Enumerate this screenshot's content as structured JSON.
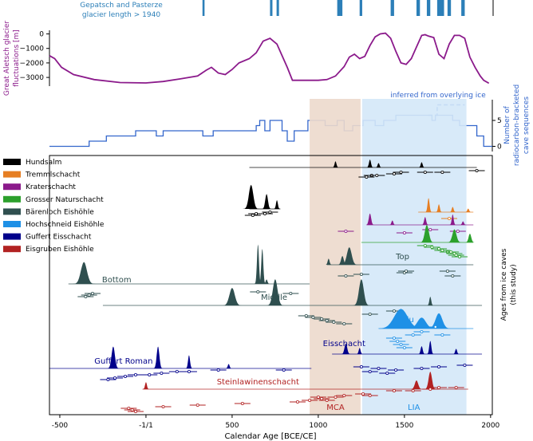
{
  "chart_data": {
    "type": "composite-timeline",
    "x_axis": {
      "label": "Calendar Age [BCE/CE]",
      "range": [
        -560,
        2010
      ],
      "ticks": [
        {
          "value": -500,
          "label": "-500"
        },
        {
          "value": 0,
          "label": "-1/1"
        },
        {
          "value": 500,
          "label": "500"
        },
        {
          "value": 1000,
          "label": "1000"
        },
        {
          "value": 1500,
          "label": "1500"
        },
        {
          "value": 2000,
          "label": "2000"
        }
      ]
    },
    "periods": [
      {
        "name": "MCA",
        "label": "MCA",
        "start": 950,
        "end": 1250,
        "color": "#ecd9cc"
      },
      {
        "name": "LIA",
        "label": "LIA",
        "start": 1250,
        "end": 1860,
        "color": "#d4e8f8"
      }
    ],
    "glacier_length_panel": {
      "title_line1": "Gepatsch and Pasterze",
      "title_line2": "glacier length > 1940",
      "color": "#2c7fb8",
      "intervals": [
        [
          328,
          340
        ],
        [
          720,
          734
        ],
        [
          758,
          772
        ],
        [
          1110,
          1140
        ],
        [
          1240,
          1255
        ],
        [
          1420,
          1440
        ],
        [
          1570,
          1590
        ],
        [
          1630,
          1650
        ],
        [
          1690,
          1730
        ],
        [
          1750,
          1770
        ],
        [
          1830,
          1850
        ]
      ]
    },
    "aletsch_panel": {
      "ylabel_line1": "Great Aletsch glacier",
      "ylabel_line2": "fluctuations [m]",
      "color": "#8b1a8b",
      "yticks": [
        0,
        -1000,
        -2000,
        -3000
      ],
      "ylim": [
        -3600,
        250
      ],
      "x": [
        -560,
        -530,
        -490,
        -420,
        -300,
        -150,
        0,
        100,
        200,
        300,
        350,
        380,
        420,
        460,
        500,
        540,
        600,
        640,
        680,
        720,
        760,
        790,
        820,
        850,
        900,
        950,
        1000,
        1050,
        1100,
        1150,
        1180,
        1210,
        1240,
        1270,
        1300,
        1330,
        1360,
        1390,
        1420,
        1450,
        1480,
        1510,
        1540,
        1570,
        1600,
        1620,
        1640,
        1670,
        1700,
        1730,
        1760,
        1790,
        1820,
        1850,
        1880,
        1910,
        1940,
        1960,
        1990
      ],
      "y": [
        -1500,
        -1700,
        -2300,
        -2800,
        -3150,
        -3350,
        -3380,
        -3280,
        -3100,
        -2900,
        -2500,
        -2300,
        -2700,
        -2800,
        -2450,
        -2000,
        -1700,
        -1300,
        -500,
        -300,
        -700,
        -1500,
        -2300,
        -3200,
        -3200,
        -3200,
        -3200,
        -3150,
        -2900,
        -2250,
        -1600,
        -1400,
        -1700,
        -1550,
        -800,
        -200,
        0,
        50,
        -300,
        -1200,
        -2000,
        -2100,
        -1700,
        -900,
        -100,
        -50,
        -150,
        -250,
        -1400,
        -1700,
        -700,
        -100,
        -100,
        -300,
        -1600,
        -2300,
        -2900,
        -3200,
        -3400
      ]
    },
    "cave_count_panel": {
      "ylabel_line1": "Number of",
      "ylabel_line2": "radiocarbon-bracketed",
      "ylabel_line3": "cave sequences",
      "annotation": "inferred from overlying ice",
      "color": "#3366cc",
      "yticks": [
        0,
        5
      ],
      "ylim": [
        -1,
        9
      ],
      "x": [
        -560,
        -500,
        -330,
        -230,
        -60,
        0,
        60,
        100,
        280,
        330,
        390,
        450,
        560,
        640,
        660,
        690,
        720,
        790,
        820,
        860,
        900,
        940,
        1000,
        1040,
        1110,
        1150,
        1200,
        1260,
        1330,
        1380,
        1400,
        1450,
        1550,
        1640,
        1660,
        1680,
        1720,
        1780,
        1820,
        1880,
        1920,
        1960,
        2010
      ],
      "y": [
        0,
        0,
        1,
        2,
        3,
        3,
        2,
        3,
        3,
        2,
        3,
        3,
        3,
        4,
        5,
        3,
        5,
        3,
        1,
        3,
        3,
        5,
        5,
        4,
        5,
        3,
        4,
        5,
        4,
        5,
        5,
        6,
        6,
        6,
        5,
        6,
        6,
        5,
        4,
        4,
        2,
        0,
        0
      ],
      "inferred_x": [
        1640,
        1680,
        1690,
        1850
      ],
      "inferred_y": [
        6,
        6,
        8,
        8
      ]
    },
    "legend": [
      {
        "label": "Hundsalm",
        "color": "#000000"
      },
      {
        "label": "Tremmlschacht",
        "color": "#e67e22"
      },
      {
        "label": "Kraterschacht",
        "color": "#8b1a8b"
      },
      {
        "label": "Grosser Naturschacht",
        "color": "#2ca02c"
      },
      {
        "label": "Bärenloch Eishöhle",
        "color": "#2f4f4f"
      },
      {
        "label": "Hochschneid Eishöhle",
        "color": "#1e90e6"
      },
      {
        "label": "Guffert Eisschacht",
        "color": "#00008b"
      },
      {
        "label": "Eisgruben Eishöhle",
        "color": "#b22222"
      }
    ],
    "ages_panel_ylabel_line1": "Ages from ice caves",
    "ages_panel_ylabel_line2": "(this study)",
    "sequences": [
      {
        "name": "Hundsalm-1",
        "label": "",
        "color": "#000000",
        "base_y": 210,
        "line": [
          600,
          1920
        ],
        "peaks": [
          [
            1100,
            14,
            3
          ],
          [
            1300,
            18,
            6
          ],
          [
            1350,
            10,
            3
          ],
          [
            1600,
            12,
            2
          ]
        ],
        "points": [
          [
            1280,
            222
          ],
          [
            1310,
            220
          ],
          [
            1340,
            220
          ],
          [
            1440,
            218
          ],
          [
            1480,
            216
          ],
          [
            1620,
            216
          ],
          [
            1720,
            216
          ],
          [
            1920,
            214
          ]
        ]
      },
      {
        "name": "Hundsalm-2",
        "label": "",
        "color": "#000000",
        "base_y": 262,
        "line": [
          600,
          780
        ],
        "peaks": [
          [
            610,
            55,
            13
          ],
          [
            700,
            34,
            8
          ],
          [
            760,
            20,
            5
          ]
        ],
        "points": [
          [
            620,
            270
          ],
          [
            640,
            268
          ],
          [
            690,
            268
          ],
          [
            720,
            266
          ]
        ]
      },
      {
        "name": "Tremmlschacht",
        "label": "",
        "color": "#e67e22",
        "base_y": 266,
        "line": [
          1580,
          1900
        ],
        "peaks": [
          [
            1640,
            32,
            6
          ],
          [
            1700,
            18,
            5
          ],
          [
            1780,
            12,
            3
          ],
          [
            1870,
            8,
            2
          ]
        ],
        "points": [
          [
            1760,
            274
          ]
        ]
      },
      {
        "name": "Kraterschacht",
        "label": "",
        "color": "#8b1a8b",
        "base_y": 282,
        "line": [
          1280,
          1900
        ],
        "peaks": [
          [
            1300,
            26,
            7
          ],
          [
            1430,
            10,
            3
          ],
          [
            1620,
            18,
            6
          ],
          [
            1780,
            24,
            5
          ],
          [
            1840,
            8,
            2
          ]
        ],
        "points": [
          [
            1160,
            290
          ],
          [
            1500,
            292
          ],
          [
            1650,
            288
          ],
          [
            1810,
            290
          ]
        ]
      },
      {
        "name": "Grosser Naturschacht",
        "label": "",
        "color": "#2ca02c",
        "base_y": 304,
        "line": [
          1250,
          1900
        ],
        "peaks": [
          [
            1630,
            40,
            12
          ],
          [
            1790,
            30,
            12
          ],
          [
            1880,
            20,
            8
          ]
        ],
        "points": [
          [
            1620,
            308
          ],
          [
            1660,
            310
          ],
          [
            1700,
            312
          ],
          [
            1720,
            314
          ],
          [
            1750,
            316
          ],
          [
            1770,
            316
          ],
          [
            1790,
            318
          ],
          [
            1800,
            320
          ],
          [
            1820,
            322
          ]
        ]
      },
      {
        "name": "Top",
        "label": "Top",
        "color": "#2f4f4f",
        "base_y": 332,
        "line": [
          1050,
          1900
        ],
        "peaks": [
          [
            1060,
            14,
            4
          ],
          [
            1140,
            20,
            8
          ],
          [
            1180,
            40,
            14
          ]
        ],
        "points": [
          [
            1160,
            346
          ],
          [
            1250,
            344
          ],
          [
            1500,
            342
          ],
          [
            1510,
            340
          ],
          [
            1750,
            340
          ],
          [
            1780,
            346
          ]
        ]
      },
      {
        "name": "Bottom",
        "label": "Bottom",
        "color": "#2f4f4f",
        "base_y": 356,
        "line": [
          -450,
          950
        ],
        "peaks": [
          [
            -360,
            50,
            18
          ],
          [
            650,
            90,
            6
          ],
          [
            675,
            80,
            6
          ],
          [
            700,
            10,
            2
          ]
        ],
        "points": [
          [
            -350,
            372
          ],
          [
            -330,
            370
          ],
          [
            -310,
            368
          ],
          [
            650,
            366
          ],
          [
            840,
            368
          ]
        ]
      },
      {
        "name": "Middle",
        "label": "Middle",
        "color": "#2f4f4f",
        "base_y": 383,
        "line": [
          -250,
          1950
        ],
        "peaks": [
          [
            500,
            40,
            16
          ],
          [
            750,
            60,
            14
          ],
          [
            1250,
            60,
            14
          ],
          [
            1650,
            20,
            5
          ]
        ],
        "points": [
          [
            930,
            396
          ],
          [
            970,
            398
          ],
          [
            1020,
            400
          ],
          [
            1050,
            402
          ],
          [
            1090,
            404
          ],
          [
            1150,
            406
          ],
          [
            1300,
            394
          ],
          [
            1440,
            390
          ]
        ]
      },
      {
        "name": "Iglu",
        "label": "Iglu",
        "color": "#1e90e6",
        "base_y": 412,
        "line": [
          1350,
          1900
        ],
        "peaks": [
          [
            1480,
            45,
            40
          ],
          [
            1600,
            25,
            25
          ],
          [
            1700,
            35,
            20
          ]
        ],
        "points": [
          [
            1440,
            424
          ],
          [
            1460,
            428
          ],
          [
            1480,
            432
          ],
          [
            1500,
            436
          ],
          [
            1550,
            420
          ],
          [
            1600,
            416
          ],
          [
            1680,
            410
          ],
          [
            1720,
            420
          ]
        ]
      },
      {
        "name": "Eisschacht",
        "label": "Eisschacht",
        "color": "#00008b",
        "base_y": 444,
        "line": [
          1080,
          1950
        ],
        "peaks": [
          [
            1160,
            24,
            8
          ],
          [
            1240,
            14,
            4
          ],
          [
            1600,
            18,
            6
          ],
          [
            1650,
            30,
            6
          ],
          [
            1800,
            12,
            3
          ]
        ],
        "points": [
          [
            1250,
            460
          ],
          [
            1300,
            466
          ],
          [
            1350,
            462
          ],
          [
            1400,
            468
          ],
          [
            1450,
            464
          ],
          [
            1600,
            462
          ],
          [
            1700,
            460
          ],
          [
            1850,
            458
          ]
        ]
      },
      {
        "name": "Guffert Roman",
        "label": "Guffert Roman",
        "color": "#00008b",
        "base_y": 462,
        "line": [
          -560,
          960
        ],
        "peaks": [
          [
            -190,
            50,
            10
          ],
          [
            70,
            50,
            8
          ],
          [
            250,
            30,
            6
          ],
          [
            480,
            10,
            4
          ]
        ],
        "points": [
          [
            -220,
            476
          ],
          [
            -180,
            474
          ],
          [
            -120,
            472
          ],
          [
            -60,
            470
          ],
          [
            20,
            470
          ],
          [
            90,
            468
          ],
          [
            180,
            466
          ],
          [
            250,
            466
          ],
          [
            420,
            464
          ],
          [
            800,
            464
          ]
        ]
      },
      {
        "name": "Steinlawinenschacht",
        "label": "Steinlawinenschacht",
        "color": "#b22222",
        "base_y": 488,
        "line": [
          -20,
          1870
        ],
        "peaks": [
          [
            0,
            16,
            4
          ],
          [
            1570,
            20,
            10
          ],
          [
            1650,
            40,
            10
          ]
        ],
        "points": [
          [
            -100,
            512
          ],
          [
            -80,
            514
          ],
          [
            -60,
            516
          ],
          [
            100,
            510
          ],
          [
            300,
            508
          ],
          [
            560,
            506
          ],
          [
            880,
            504
          ],
          [
            950,
            502
          ],
          [
            1000,
            498
          ],
          [
            1020,
            500
          ],
          [
            1050,
            502
          ],
          [
            1100,
            498
          ],
          [
            1150,
            496
          ],
          [
            1260,
            494
          ],
          [
            1300,
            496
          ],
          [
            1440,
            490
          ],
          [
            1550,
            490
          ],
          [
            1650,
            488
          ],
          [
            1700,
            486
          ],
          [
            1800,
            486
          ]
        ]
      }
    ]
  }
}
